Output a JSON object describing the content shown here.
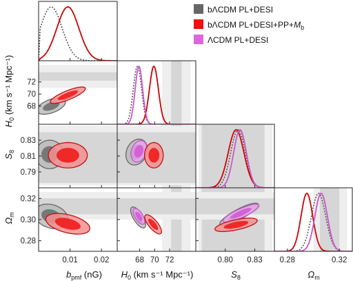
{
  "chart_data": {
    "type": "triangle-corner-plot",
    "parameters": [
      "b_pmf",
      "H0",
      "S8",
      "Omega_m"
    ],
    "axis_labels": {
      "b_pmf": {
        "main": "b",
        "sub": "pmf",
        "tail": " (nG)"
      },
      "H0": {
        "main": "H",
        "sub": "0",
        "tail": " (km s⁻¹ Mpc⁻¹)"
      },
      "S8": {
        "main": "S",
        "sub": "8",
        "tail": ""
      },
      "Omega_m": {
        "main": "Ω",
        "sub": "m",
        "tail": ""
      }
    },
    "ranges": {
      "b_pmf": [
        0.0,
        0.025
      ],
      "H0": [
        65.0,
        75.5
      ],
      "S8": [
        0.77,
        0.85
      ],
      "Omega_m": [
        0.27,
        0.33
      ]
    },
    "ticks": {
      "b_pmf": {
        "values": [
          0.01,
          0.02
        ],
        "labels": [
          "0.01",
          "0.02"
        ]
      },
      "H0": {
        "values": [
          68,
          70,
          72
        ],
        "labels": [
          "68",
          "70",
          "72"
        ]
      },
      "S8": {
        "values": [
          0.79,
          0.81,
          0.83
        ],
        "labels": [
          "0.79",
          "0.81",
          "0.83"
        ]
      },
      "S8_bottom": {
        "values": [
          0.8,
          0.83
        ],
        "labels": [
          "0.80",
          "0.83"
        ]
      },
      "Omega_m": {
        "values": [
          0.28,
          0.3,
          0.32
        ],
        "labels": [
          "0.28",
          "0.30",
          "0.32"
        ]
      },
      "Omega_m_bottom": {
        "values": [
          0.28,
          0.32
        ],
        "labels": [
          "0.28",
          "0.32"
        ]
      }
    },
    "legend": {
      "placement": "top-right",
      "entries": [
        {
          "id": "grey",
          "pre": "bΛCDM PL+DESI",
          "italic": "",
          "sub": ""
        },
        {
          "id": "red",
          "pre": "bΛCDM PL+DESI+PP+",
          "italic": "M",
          "sub": "b"
        },
        {
          "id": "violet",
          "pre": "ΛCDM PL+DESI",
          "italic": "",
          "sub": ""
        }
      ]
    },
    "series": [
      {
        "id": "grey",
        "color": "#555555",
        "fill": "#7a7a7a",
        "line_style": "dotted",
        "mean": {
          "b_pmf": 0.004,
          "H0": 67.7,
          "S8": 0.813,
          "Omega_m": 0.304
        },
        "sigma": {
          "b_pmf": 0.0035,
          "H0": 0.55,
          "S8": 0.0075,
          "Omega_m": 0.0055
        }
      },
      {
        "id": "red",
        "color": "#cc0000",
        "fill": "#ee2222",
        "line_style": "solid",
        "mean": {
          "b_pmf": 0.0093,
          "H0": 69.9,
          "S8": 0.811,
          "Omega_m": 0.295
        },
        "sigma": {
          "b_pmf": 0.0035,
          "H0": 0.6,
          "S8": 0.008,
          "Omega_m": 0.0045
        }
      },
      {
        "id": "violet",
        "color": "#cc55cc",
        "fill": "#dd66dd",
        "line_style": "solid",
        "mean": {
          "H0": 67.9,
          "S8": 0.815,
          "Omega_m": 0.306
        },
        "sigma": {
          "H0": 0.5,
          "S8": 0.0065,
          "Omega_m": 0.0048
        }
      }
    ],
    "pairs": [
      {
        "x": "b_pmf",
        "y": "H0",
        "contours": [
          {
            "series": "grey",
            "cx": 0.004,
            "cy": 68.0,
            "r1": 0.0048,
            "r2": 1.1,
            "angle": 20,
            "cut_left": true
          },
          {
            "series": "red",
            "cx": 0.0093,
            "cy": 69.8,
            "r1": 0.006,
            "r2": 0.75,
            "angle": 22
          }
        ]
      },
      {
        "x": "b_pmf",
        "y": "S8",
        "contours": [
          {
            "series": "grey",
            "cx": 0.0035,
            "cy": 0.812,
            "r1": 0.0045,
            "r2": 0.018,
            "angle": 0,
            "cut_left": true
          },
          {
            "series": "red",
            "cx": 0.0093,
            "cy": 0.811,
            "r1": 0.0062,
            "r2": 0.016,
            "angle": 0
          }
        ]
      },
      {
        "x": "b_pmf",
        "y": "Omega_m",
        "contours": [
          {
            "series": "grey",
            "cx": 0.004,
            "cy": 0.303,
            "r1": 0.0055,
            "r2": 0.011,
            "angle": -18,
            "cut_left": true
          },
          {
            "series": "red",
            "cx": 0.0093,
            "cy": 0.296,
            "r1": 0.0072,
            "r2": 0.0085,
            "angle": -14
          }
        ]
      },
      {
        "x": "H0",
        "y": "S8",
        "contours": [
          {
            "series": "grey",
            "cx": 67.6,
            "cy": 0.815,
            "r1": 1.35,
            "r2": 0.017,
            "angle": -25
          },
          {
            "series": "violet",
            "cx": 67.9,
            "cy": 0.816,
            "r1": 1.0,
            "r2": 0.014,
            "angle": -20
          },
          {
            "series": "red",
            "cx": 69.9,
            "cy": 0.811,
            "r1": 1.25,
            "r2": 0.016,
            "angle": 0
          }
        ]
      },
      {
        "x": "H0",
        "y": "Omega_m",
        "contours": [
          {
            "series": "grey",
            "cx": 67.8,
            "cy": 0.302,
            "r1": 1.6,
            "r2": 0.0045,
            "angle": -58
          },
          {
            "series": "violet",
            "cx": 67.9,
            "cy": 0.303,
            "r1": 1.2,
            "r2": 0.0038,
            "angle": -58
          },
          {
            "series": "red",
            "cx": 69.8,
            "cy": 0.2955,
            "r1": 1.6,
            "r2": 0.0042,
            "angle": -50
          }
        ]
      },
      {
        "x": "S8",
        "y": "Omega_m",
        "contours": [
          {
            "series": "grey",
            "cx": 0.814,
            "cy": 0.305,
            "r1": 0.022,
            "r2": 0.0048,
            "angle": 28
          },
          {
            "series": "violet",
            "cx": 0.816,
            "cy": 0.306,
            "r1": 0.02,
            "r2": 0.0042,
            "angle": 24
          },
          {
            "series": "red",
            "cx": 0.811,
            "cy": 0.295,
            "r1": 0.022,
            "r2": 0.0048,
            "angle": 12
          }
        ]
      }
    ],
    "bands": [
      {
        "param": "H0",
        "inner": [
          72.2,
          73.6
        ],
        "outer": [
          71.0,
          74.8
        ]
      },
      {
        "param": "S8",
        "inner": [
          0.776,
          0.84
        ],
        "outer": [
          0.773,
          0.848
        ]
      },
      {
        "param": "Omega_m",
        "inner": [
          0.305,
          0.32
        ],
        "outer": [
          0.3,
          0.326
        ]
      }
    ]
  }
}
